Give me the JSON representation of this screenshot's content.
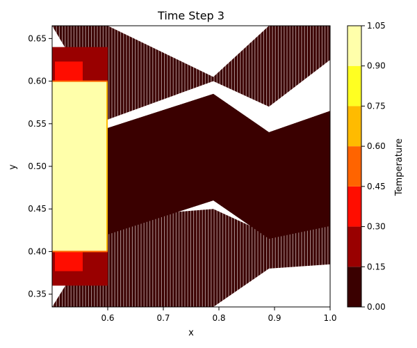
{
  "chart_data": {
    "type": "contourf",
    "title": "Time Step 3",
    "xlabel": "x",
    "ylabel": "y",
    "xlim": [
      0.5,
      1.0
    ],
    "ylim": [
      0.335,
      0.665
    ],
    "x_ticks": [
      0.6,
      0.7,
      0.8,
      0.9,
      1.0
    ],
    "x_tick_labels": [
      "0.6",
      "0.7",
      "0.8",
      "0.9",
      "1.0"
    ],
    "y_ticks": [
      0.35,
      0.4,
      0.45,
      0.5,
      0.55,
      0.6,
      0.65
    ],
    "y_tick_labels": [
      "0.35",
      "0.40",
      "0.45",
      "0.50",
      "0.55",
      "0.60",
      "0.65"
    ],
    "colorbar": {
      "label": "Temperature",
      "levels": [
        0.0,
        0.15,
        0.3,
        0.45,
        0.6,
        0.75,
        0.9,
        1.05
      ],
      "tick_labels": [
        "0.00",
        "0.15",
        "0.30",
        "0.45",
        "0.60",
        "0.75",
        "0.90",
        "1.05"
      ],
      "colors": [
        "#3a0000",
        "#990000",
        "#ff0d00",
        "#ff6400",
        "#ffbb00",
        "#ffff22",
        "#ffffaa"
      ]
    },
    "regions": {
      "hot_block": {
        "x": [
          0.5,
          0.6
        ],
        "y": [
          0.4,
          0.6
        ],
        "value": 1.0
      },
      "cold_band_outline": [
        [
          0.6,
          0.545
        ],
        [
          0.79,
          0.585
        ],
        [
          0.89,
          0.54
        ],
        [
          1.0,
          0.565
        ],
        [
          1.0,
          0.43
        ],
        [
          0.89,
          0.415
        ],
        [
          0.79,
          0.46
        ],
        [
          0.6,
          0.42
        ]
      ],
      "top_hatched_outline": [
        [
          0.5,
          0.665
        ],
        [
          0.6,
          0.665
        ],
        [
          0.79,
          0.605
        ],
        [
          0.89,
          0.665
        ],
        [
          1.0,
          0.665
        ],
        [
          1.0,
          0.625
        ],
        [
          0.89,
          0.57
        ],
        [
          0.79,
          0.6
        ],
        [
          0.6,
          0.555
        ]
      ],
      "bottom_hatched_outline": [
        [
          0.5,
          0.335
        ],
        [
          0.79,
          0.335
        ],
        [
          0.89,
          0.38
        ],
        [
          1.0,
          0.385
        ],
        [
          1.0,
          0.44
        ],
        [
          0.89,
          0.42
        ],
        [
          0.79,
          0.45
        ],
        [
          0.6,
          0.44
        ]
      ]
    }
  }
}
